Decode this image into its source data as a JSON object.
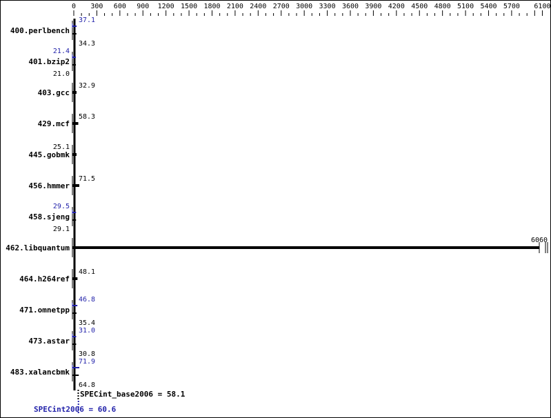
{
  "chart_data": {
    "type": "bar",
    "orientation": "horizontal",
    "title": "",
    "xlabel": "",
    "ylabel": "",
    "xlim": [
      0,
      6100
    ],
    "x_ticks": [
      0,
      300,
      600,
      900,
      1200,
      1500,
      1800,
      2100,
      2400,
      2700,
      3000,
      3300,
      3600,
      3900,
      4200,
      4500,
      4800,
      5100,
      5400,
      5700,
      6100
    ],
    "grid": false,
    "colors": {
      "base": "#000000",
      "peak": "#2222aa"
    },
    "categories": [
      "400.perlbench",
      "401.bzip2",
      "403.gcc",
      "429.mcf",
      "445.gobmk",
      "456.hmmer",
      "458.sjeng",
      "462.libquantum",
      "464.h264ref",
      "471.omnetpp",
      "473.astar",
      "483.xalancbmk"
    ],
    "series": [
      {
        "key": "base",
        "values": [
          "34.3",
          "21.0",
          "32.9",
          "58.3",
          "25.1",
          "71.5",
          "29.1",
          "6060",
          "48.1",
          "35.4",
          "30.8",
          "64.8"
        ]
      },
      {
        "key": "peak",
        "values": [
          "37.1",
          "21.4",
          null,
          null,
          null,
          null,
          "29.5",
          null,
          null,
          "46.8",
          "31.0",
          "71.9"
        ]
      }
    ],
    "summary": {
      "base_label": "SPECint_base2006 = 58.1",
      "base_value": 58.1,
      "peak_label": "SPECint2006 = 60.6",
      "peak_value": 60.6
    }
  }
}
